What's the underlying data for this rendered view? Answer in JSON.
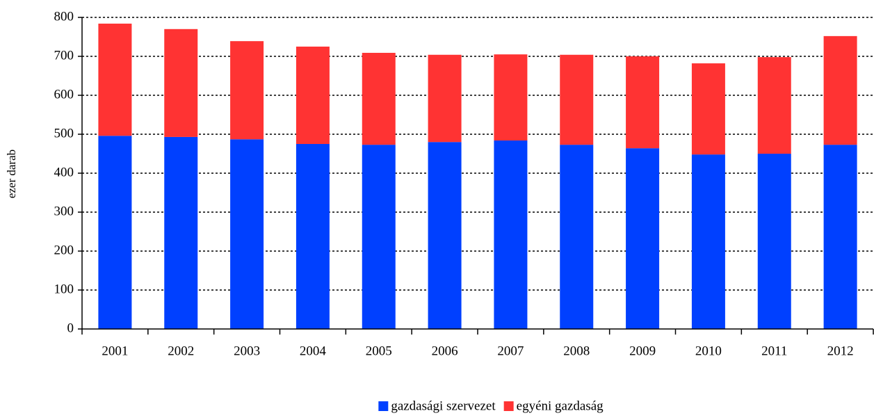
{
  "chart_data": {
    "type": "bar",
    "stacked": true,
    "y_label": "ezer darab",
    "categories": [
      "2001",
      "2002",
      "2003",
      "2004",
      "2005",
      "2006",
      "2007",
      "2008",
      "2009",
      "2010",
      "2011",
      "2012"
    ],
    "series": [
      {
        "name": "gazdasági szervezet",
        "color": "#0040ff",
        "values": [
          496,
          493,
          487,
          475,
          473,
          480,
          484,
          473,
          464,
          448,
          450,
          473
        ]
      },
      {
        "name": "egyéni gazdaság",
        "color": "#ff3333",
        "values": [
          288,
          277,
          252,
          250,
          236,
          224,
          221,
          231,
          236,
          234,
          248,
          279
        ]
      }
    ],
    "ylim": [
      0,
      800
    ],
    "yticks": [
      0,
      100,
      200,
      300,
      400,
      500,
      600,
      700,
      800
    ],
    "grid": true,
    "legend": "bottom"
  }
}
